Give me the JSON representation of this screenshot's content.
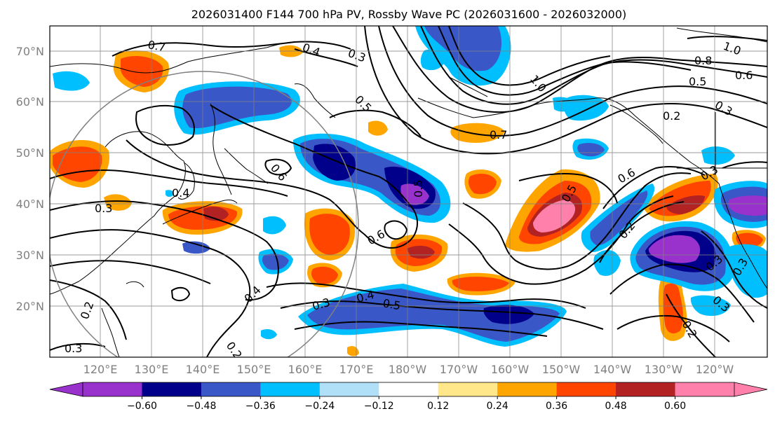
{
  "title": "2026031400 F144 700 hPa PV, Rossby Wave PC (2026031600 - 2026032000)",
  "lat_labels": [
    "70°N",
    "60°N",
    "50°N",
    "40°N",
    "30°N",
    "20°N"
  ],
  "lon_labels": [
    "120°E",
    "130°E",
    "140°E",
    "150°E",
    "160°E",
    "170°E",
    "180°W",
    "170°W",
    "160°W",
    "150°W",
    "140°W",
    "130°W",
    "120°W"
  ],
  "colorbar": {
    "colors": [
      "#9932cc",
      "#00008b",
      "#3a57c8",
      "#00bfff",
      "#b0e0f8",
      "#ffffff",
      "#ffe78a",
      "#ffa500",
      "#ff4500",
      "#b22222",
      "#ff80aa"
    ],
    "under_color": "#9932cc",
    "over_color": "#ff80aa",
    "tick_labels": [
      "−0.60",
      "−0.48",
      "−0.36",
      "−0.24",
      "−0.12",
      "0.12",
      "0.24",
      "0.36",
      "0.48",
      "0.60"
    ]
  },
  "contour_labels": [
    {
      "text": "0.7"
    },
    {
      "text": "0.4"
    },
    {
      "text": "0.3"
    },
    {
      "text": "0.5"
    },
    {
      "text": "1.0"
    },
    {
      "text": "0.7"
    },
    {
      "text": "0.8"
    },
    {
      "text": "1.0"
    },
    {
      "text": "0.6"
    },
    {
      "text": "0.5"
    },
    {
      "text": "0.3"
    },
    {
      "text": "0.2"
    },
    {
      "text": "0.6"
    },
    {
      "text": "0.4"
    },
    {
      "text": "0.3"
    },
    {
      "text": "0.6"
    },
    {
      "text": "0.5"
    },
    {
      "text": "0.6"
    },
    {
      "text": "0.4"
    },
    {
      "text": "0.3"
    },
    {
      "text": "0.4"
    },
    {
      "text": "0.5"
    },
    {
      "text": "0.2"
    },
    {
      "text": "0.3"
    },
    {
      "text": "0.3"
    },
    {
      "text": "0.3"
    },
    {
      "text": "0.2"
    },
    {
      "text": "0.2"
    },
    {
      "text": "0.3"
    },
    {
      "text": "0.2"
    },
    {
      "text": "0.3"
    },
    {
      "text": "0.5"
    }
  ]
}
